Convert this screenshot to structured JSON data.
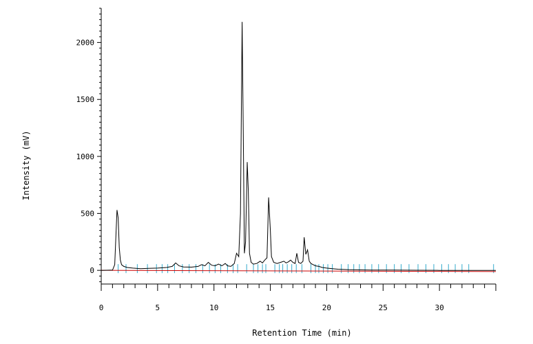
{
  "chart_data": {
    "type": "line",
    "xlabel": "Retention Time (min)",
    "ylabel": "Intensity (mV)",
    "xlim": [
      0,
      35
    ],
    "ylim": [
      -120,
      2300
    ],
    "x_ticks": [
      0,
      5,
      10,
      15,
      20,
      25,
      30
    ],
    "x_tick_labels": [
      "0",
      "5",
      "10",
      "15",
      "20",
      "25",
      "30"
    ],
    "y_ticks": [
      0,
      500,
      1000,
      1500,
      2000
    ],
    "y_tick_labels": [
      "0",
      "500",
      "1000",
      "1500",
      "2000"
    ],
    "grid": false,
    "colors": {
      "signal": "#000000",
      "baseline": "#cc0000",
      "markers": "#33aacc"
    },
    "baseline": {
      "x": [
        0,
        35
      ],
      "y": [
        0,
        -10
      ]
    },
    "series": [
      {
        "x": [
          0.0,
          1.0,
          1.2,
          1.3,
          1.4,
          1.5,
          1.6,
          1.7,
          1.8,
          2.0,
          2.3,
          2.8,
          3.5,
          4.2,
          5.0,
          5.8,
          6.3,
          6.6,
          6.9,
          7.3,
          8.0,
          8.6,
          8.9,
          9.2,
          9.5,
          9.8,
          10.1,
          10.4,
          10.7,
          11.0,
          11.2,
          11.5,
          11.8,
          12.0,
          12.2,
          12.35,
          12.5,
          12.6,
          12.7,
          12.8,
          12.95,
          13.05,
          13.15,
          13.3,
          13.5,
          13.8,
          14.1,
          14.3,
          14.5,
          14.7,
          14.85,
          15.0,
          15.1,
          15.3,
          15.6,
          15.9,
          16.2,
          16.4,
          16.6,
          16.8,
          17.0,
          17.2,
          17.35,
          17.5,
          17.7,
          17.9,
          18.0,
          18.15,
          18.3,
          18.45,
          18.6,
          18.8,
          19.0,
          19.3,
          19.6,
          20.0,
          20.5,
          21.0,
          22.0,
          24.0,
          26.0,
          28.0,
          30.0,
          32.0,
          34.0,
          35.0
        ],
        "y": [
          0,
          2,
          50,
          300,
          530,
          460,
          200,
          90,
          50,
          35,
          25,
          20,
          15,
          18,
          20,
          25,
          35,
          65,
          40,
          30,
          28,
          35,
          50,
          40,
          70,
          45,
          40,
          55,
          40,
          60,
          40,
          35,
          60,
          150,
          120,
          500,
          2180,
          1200,
          150,
          250,
          950,
          700,
          150,
          70,
          55,
          60,
          80,
          65,
          90,
          110,
          640,
          350,
          120,
          70,
          60,
          70,
          80,
          65,
          75,
          90,
          70,
          60,
          150,
          70,
          60,
          80,
          290,
          140,
          180,
          80,
          60,
          50,
          40,
          35,
          25,
          20,
          15,
          10,
          5,
          3,
          2,
          1,
          0,
          0,
          0,
          0
        ]
      }
    ],
    "peak_markers_x": [
      1.5,
      2.2,
      3.2,
      4.1,
      4.9,
      5.4,
      5.9,
      6.5,
      7.2,
      7.8,
      8.4,
      9.0,
      9.6,
      10.1,
      10.6,
      11.2,
      11.7,
      12.1,
      12.9,
      13.5,
      13.9,
      14.3,
      14.6,
      15.4,
      15.8,
      16.1,
      16.5,
      16.9,
      17.3,
      17.8,
      18.6,
      19.0,
      19.3,
      19.7,
      20.1,
      20.5,
      21.3,
      21.9,
      22.4,
      22.9,
      23.4,
      24.0,
      24.6,
      25.3,
      26.0,
      26.6,
      27.3,
      28.1,
      28.8,
      29.5,
      30.2,
      30.8,
      31.4,
      32.0,
      32.6,
      34.8
    ]
  }
}
